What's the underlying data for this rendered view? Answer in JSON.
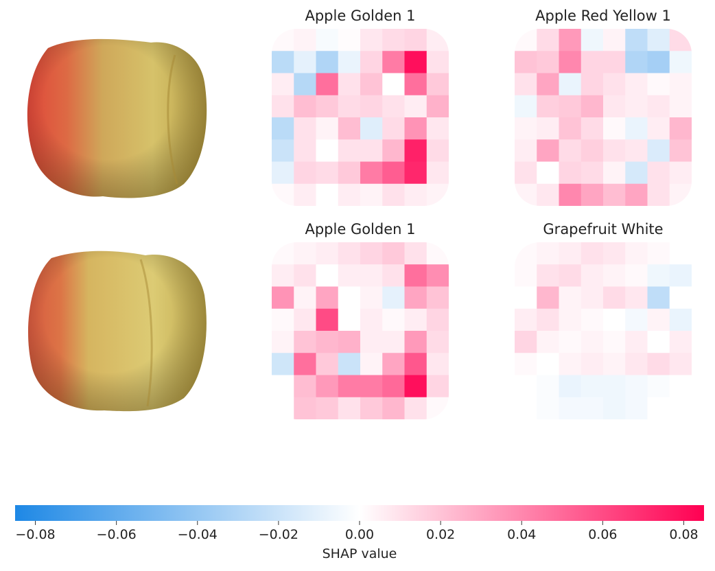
{
  "chart_data": {
    "type": "heatmap",
    "title": "",
    "panels": [
      {
        "title": "Apple Golden 1",
        "matrix": [
          [
            0.002,
            0.004,
            -0.003,
            0.001,
            0.008,
            0.012,
            0.014,
            0.006
          ],
          [
            -0.026,
            -0.01,
            -0.03,
            -0.008,
            0.014,
            0.044,
            0.08,
            0.01
          ],
          [
            0.006,
            -0.028,
            0.048,
            0.01,
            0.02,
            0.0,
            0.048,
            0.018
          ],
          [
            0.01,
            0.022,
            0.018,
            0.012,
            0.014,
            0.01,
            0.006,
            0.026
          ],
          [
            -0.026,
            0.01,
            0.004,
            0.022,
            -0.012,
            0.012,
            0.036,
            0.008
          ],
          [
            -0.02,
            0.01,
            0.0,
            0.01,
            0.01,
            0.024,
            0.074,
            0.012
          ],
          [
            -0.01,
            0.014,
            0.012,
            0.018,
            0.044,
            0.054,
            0.072,
            0.008
          ],
          [
            0.002,
            0.006,
            0.0,
            0.006,
            0.004,
            0.01,
            0.006,
            0.004
          ]
        ]
      },
      {
        "title": "Apple Red Yellow 1",
        "matrix": [
          [
            0.002,
            0.012,
            0.034,
            -0.006,
            0.004,
            -0.024,
            -0.012,
            0.012
          ],
          [
            0.02,
            0.018,
            0.04,
            0.014,
            0.014,
            -0.03,
            -0.034,
            -0.006
          ],
          [
            0.01,
            0.03,
            -0.008,
            0.014,
            0.01,
            0.006,
            0.002,
            0.004
          ],
          [
            -0.006,
            0.016,
            0.018,
            0.024,
            0.008,
            0.006,
            0.008,
            0.004
          ],
          [
            0.004,
            0.006,
            0.02,
            0.012,
            0.002,
            -0.008,
            0.006,
            0.024
          ],
          [
            0.006,
            0.03,
            0.012,
            0.016,
            0.01,
            0.008,
            -0.014,
            0.02
          ],
          [
            0.01,
            0.0,
            0.014,
            0.012,
            0.004,
            -0.016,
            0.01,
            0.006
          ],
          [
            0.004,
            0.008,
            0.04,
            0.03,
            0.022,
            0.03,
            0.01,
            0.004
          ]
        ]
      },
      {
        "title": "Apple Golden 1",
        "matrix": [
          [
            0.002,
            0.004,
            0.006,
            0.01,
            0.014,
            0.018,
            0.01,
            0.002
          ],
          [
            0.006,
            0.01,
            0.0,
            0.006,
            0.006,
            0.01,
            0.048,
            0.038
          ],
          [
            0.036,
            0.004,
            0.03,
            0.0,
            0.004,
            -0.01,
            0.03,
            0.02
          ],
          [
            0.002,
            0.008,
            0.06,
            0.0,
            0.006,
            0.002,
            0.006,
            0.014
          ],
          [
            0.004,
            0.02,
            0.024,
            0.026,
            0.006,
            0.006,
            0.034,
            0.012
          ],
          [
            -0.018,
            0.048,
            0.018,
            -0.02,
            0.004,
            0.03,
            0.056,
            0.008
          ],
          [
            0.0,
            0.022,
            0.034,
            0.044,
            0.044,
            0.05,
            0.08,
            0.014
          ],
          [
            0.0,
            0.02,
            0.018,
            0.01,
            0.018,
            0.024,
            0.01,
            0.002
          ]
        ]
      },
      {
        "title": "Grapefruit White",
        "matrix": [
          [
            0.002,
            0.004,
            0.006,
            0.01,
            0.008,
            0.004,
            0.002,
            0.0
          ],
          [
            0.002,
            0.01,
            0.012,
            0.006,
            0.004,
            0.002,
            -0.006,
            -0.008
          ],
          [
            0.0,
            0.024,
            0.004,
            0.006,
            0.012,
            0.008,
            -0.024,
            0.0
          ],
          [
            0.006,
            0.01,
            0.004,
            0.002,
            0.0,
            -0.004,
            0.004,
            -0.008
          ],
          [
            0.014,
            0.004,
            0.002,
            0.004,
            0.002,
            0.006,
            0.0,
            0.006
          ],
          [
            0.002,
            0.0,
            0.004,
            0.006,
            0.004,
            0.008,
            0.012,
            0.008
          ],
          [
            0.0,
            -0.002,
            -0.008,
            -0.006,
            -0.006,
            -0.004,
            -0.002,
            0.0
          ],
          [
            0.0,
            -0.002,
            -0.004,
            -0.004,
            -0.006,
            -0.004,
            0.0,
            0.0
          ]
        ]
      }
    ],
    "colorbar": {
      "label": "SHAP value",
      "range": [
        -0.085,
        0.085
      ],
      "ticks": [
        -0.08,
        -0.06,
        -0.04,
        -0.02,
        0.0,
        0.02,
        0.04,
        0.06,
        0.08
      ],
      "tick_labels": [
        "−0.08",
        "−0.06",
        "−0.04",
        "−0.02",
        "0.00",
        "0.02",
        "0.04",
        "0.06",
        "0.08"
      ],
      "negative_color": "#1e88e5",
      "positive_color": "#ff0052",
      "neutral_color": "#ffffff"
    },
    "input_images": [
      "apple-photo",
      "apple-photo"
    ],
    "input_colors": {
      "red": "#d84a3c",
      "yellow": "#c9b25a",
      "light": "#e2d27a"
    }
  }
}
